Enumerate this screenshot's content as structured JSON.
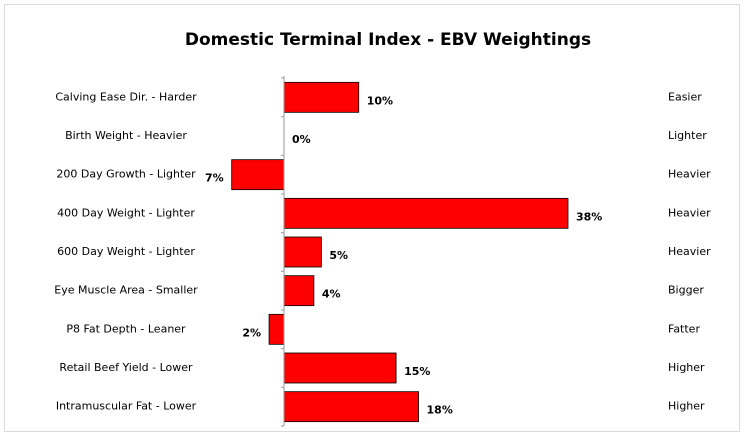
{
  "chart_data": {
    "type": "bar",
    "orientation": "horizontal",
    "title": "Domestic Terminal Index  - EBV Weightings",
    "categories": [
      "Calving Ease Dir. - Harder",
      "Birth Weight - Heavier",
      "200 Day Growth - Lighter",
      "400 Day Weight - Lighter",
      "600 Day Weight - Lighter",
      "Eye Muscle Area - Smaller",
      "P8 Fat Depth - Leaner",
      "Retail Beef Yield - Lower",
      "Intramuscular Fat - Lower"
    ],
    "right_categories": [
      "Easier",
      "Lighter",
      "Heavier",
      "Heavier",
      "Heavier",
      "Bigger",
      "Fatter",
      "Higher",
      "Higher"
    ],
    "values": [
      10,
      0,
      -7,
      38,
      5,
      4,
      -2,
      15,
      18
    ],
    "value_labels": [
      "10%",
      "0%",
      "7%",
      "38%",
      "5%",
      "4%",
      "2%",
      "15%",
      "18%"
    ],
    "color": "#ff0000"
  }
}
